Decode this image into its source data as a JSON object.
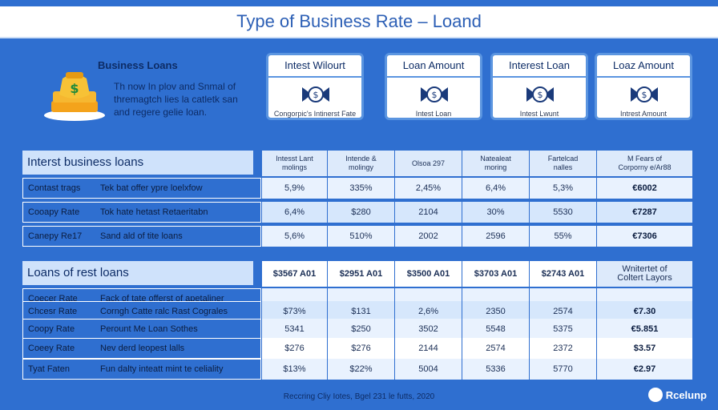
{
  "title": "Type of Business Rate – Loand",
  "hero": {
    "icon": "money-bag-icon",
    "heading": "Business Loans",
    "desc_lines": [
      "Th now In plov and Snmal of",
      "thremagtch lies la catletk san",
      "and regere gelie loan."
    ]
  },
  "cards": [
    {
      "label": "Intest Wilourt",
      "sub": "Congorpic's Intinerst Fate",
      "icon": "bowtie-dollar-icon"
    },
    {
      "label": "Loan Amount",
      "sub": "Intest Loan",
      "icon": "bowtie-dollar-icon"
    },
    {
      "label": "Interest Loan",
      "sub": "Intest Lwunt",
      "icon": "bowtie-dollar-icon"
    },
    {
      "label": "Loaz Amount",
      "sub": "Intrest Amount",
      "icon": "bowtie-dollar-icon"
    }
  ],
  "table1": {
    "label": "Interst business loans",
    "columns": [
      "Intesst Lant\nmolings",
      "Intende &\nmolingy",
      "Olsoa 297",
      "Natealeat\nmoring",
      "Fartelcad\nnalles",
      "M Fears of\nCorporny e/Ar88"
    ],
    "rows": [
      {
        "key": "Contast trags",
        "desc": "Tek bat offer ypre loelxfow",
        "values": [
          "5,9%",
          "335%",
          "2,45%",
          "6,4%",
          "5,3%",
          "€6002"
        ]
      },
      {
        "key": "Cooapy Rate",
        "desc": "Tok hate hetast Retaeritabn",
        "values": [
          "6,4%",
          "$280",
          "2104",
          "30%",
          "5530",
          "€7287"
        ]
      },
      {
        "key": "Canepy Re17",
        "desc": "Sand ald of tite loans",
        "values": [
          "5,6%",
          "510%",
          "2002",
          "2596",
          "55%",
          "€7306"
        ]
      }
    ]
  },
  "table2": {
    "label": "Loans of rest loans",
    "columns": [
      "$3567 A01",
      "$2951 A01",
      "$3500 A01",
      "$3703 A01",
      "$2743 A01",
      "Wnitertet of\nColtert Layors"
    ],
    "rows": [
      {
        "key": "Coecer Rate",
        "desc": "Fack of tate offerst of apetaliner",
        "values": [
          "",
          "",
          "",
          "",
          "",
          ""
        ]
      },
      {
        "key": "Chcesr Rate",
        "desc": "Corngh Catte ralc Rast Cograles",
        "values": [
          "$73%",
          "$131",
          "2,6%",
          "2350",
          "2574",
          "€7.30"
        ]
      },
      {
        "key": "Coopy Rate",
        "desc": "Perount Me Loan Sothes",
        "values": [
          "5341",
          "$250",
          "3502",
          "5548",
          "5375",
          "€5.851"
        ]
      },
      {
        "key": "Coeey Rate",
        "desc": "Nev derd leopest lalls",
        "values": [
          "$276",
          "$276",
          "2144",
          "2574",
          "2372",
          "$3.57"
        ]
      },
      {
        "key": "Tyat Faten",
        "desc": "Fun dalty inteatt mint te celiality",
        "values": [
          "$13%",
          "$22%",
          "5004",
          "5336",
          "5770",
          "€2.97"
        ]
      }
    ]
  },
  "footer": "Reccring Cliy Iotes, Bgel 231 le futts, 2020",
  "brand": "Rcelunp",
  "colors": {
    "background": "#2f6fd0",
    "card_border": "#5b95e0",
    "title": "#2c5fb5"
  }
}
